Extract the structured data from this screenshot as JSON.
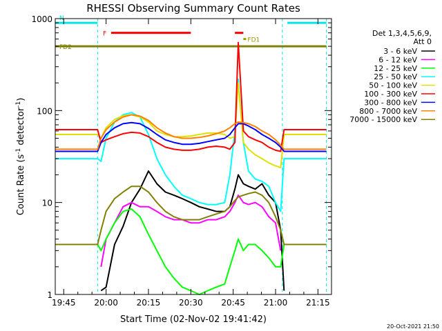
{
  "chart_data": {
    "type": "line",
    "title": "RHESSI Observing Summary Count Rates",
    "xlabel": "Start Time (02-Nov-02 19:41:42)",
    "ylabel_main": "Count Rate (s",
    "ylabel_sup1": "-1",
    "ylabel_mid": " detector",
    "ylabel_sup2": "-1",
    "ylabel_end": ")",
    "yscale": "log",
    "ylim": [
      1,
      1000
    ],
    "xlim_minutes": [
      19.7,
      21.33
    ],
    "xticks": [
      {
        "label": "19:45",
        "x": 19.75
      },
      {
        "label": "20:00",
        "x": 20.0
      },
      {
        "label": "20:15",
        "x": 20.25
      },
      {
        "label": "20:30",
        "x": 20.5
      },
      {
        "label": "20:45",
        "x": 20.75
      },
      {
        "label": "21:00",
        "x": 21.0
      },
      {
        "label": "21:15",
        "x": 21.25
      }
    ],
    "yticks": [
      {
        "label": "1",
        "y": 1
      },
      {
        "label": "10",
        "y": 10
      },
      {
        "label": "100",
        "y": 100
      },
      {
        "label": "1000",
        "y": 1000
      }
    ],
    "legend_header": [
      "Det 1,3,4,5,6,9,",
      "Att 0"
    ],
    "footer": "20-Oct-2021 21:50",
    "flags": [
      {
        "label": "N",
        "color": "#00e5e5",
        "y": 900,
        "segments": [
          [
            19.7,
            19.95
          ],
          [
            21.07,
            21.3
          ]
        ]
      },
      {
        "label": "F",
        "color": "#ff0000",
        "y": 700,
        "segments": [
          [
            20.03,
            20.5
          ],
          [
            20.76,
            20.81
          ]
        ]
      },
      {
        "label": "FD1",
        "color": "#999900",
        "y": 600,
        "segments": [
          [
            20.81,
            20.81
          ]
        ]
      },
      {
        "label": "FD2",
        "color": "#808000",
        "y": 500,
        "segments": [
          [
            19.7,
            21.3
          ]
        ]
      }
    ],
    "shading_dashes": [
      19.95,
      21.04,
      21.3
    ],
    "x_hours": [
      19.7,
      19.8,
      19.9,
      19.95,
      19.97,
      20.0,
      20.05,
      20.1,
      20.15,
      20.2,
      20.25,
      20.3,
      20.35,
      20.4,
      20.45,
      20.5,
      20.55,
      20.6,
      20.65,
      20.7,
      20.73,
      20.76,
      20.78,
      20.81,
      20.84,
      20.88,
      20.92,
      20.96,
      21.0,
      21.03,
      21.05,
      21.1,
      21.2,
      21.3
    ],
    "series": [
      {
        "name": "3 - 6 keV",
        "color": "#000000",
        "values": [
          null,
          null,
          null,
          null,
          1.1,
          1.2,
          3.5,
          5.5,
          10,
          14,
          22,
          16,
          13,
          12,
          11,
          10,
          9,
          8.5,
          8,
          8,
          9,
          14,
          20,
          16,
          15,
          14,
          16,
          12,
          10,
          5,
          1.1,
          null,
          null,
          null
        ]
      },
      {
        "name": "6 - 12 keV",
        "color": "#ff00ff",
        "values": [
          null,
          null,
          null,
          null,
          2,
          4,
          6,
          9,
          10,
          9,
          9,
          8,
          7,
          6.5,
          6.5,
          6,
          6,
          6.5,
          6.5,
          7,
          8,
          10,
          12,
          10,
          9.5,
          10,
          9,
          7,
          6,
          3,
          null,
          null,
          null,
          null
        ]
      },
      {
        "name": "12 - 25 keV",
        "color": "#00ff00",
        "values": [
          3.5,
          3.5,
          3.5,
          3.5,
          3,
          4,
          6,
          8,
          8.5,
          7,
          4.5,
          3,
          2,
          1.5,
          1.2,
          1.1,
          1.0,
          1.1,
          1.2,
          1.3,
          2,
          3,
          4,
          3,
          3.5,
          3.5,
          3,
          2.5,
          2,
          2,
          3.5,
          3.5,
          3.5,
          3.5
        ]
      },
      {
        "name": "25 - 50 keV",
        "color": "#00ffff",
        "values": [
          30,
          30,
          30,
          30,
          28,
          50,
          75,
          90,
          95,
          85,
          55,
          30,
          20,
          15,
          12,
          11,
          10,
          9.5,
          9.5,
          10,
          20,
          60,
          220,
          45,
          22,
          18,
          17,
          15,
          10,
          8,
          30,
          30,
          30,
          30
        ]
      },
      {
        "name": "50 - 100 keV",
        "color": "#e0e000",
        "values": [
          55,
          55,
          55,
          55,
          50,
          65,
          80,
          88,
          90,
          85,
          75,
          60,
          55,
          52,
          52,
          53,
          55,
          57,
          57,
          55,
          50,
          52,
          200,
          45,
          38,
          33,
          30,
          27,
          25,
          24,
          55,
          55,
          55,
          55
        ]
      },
      {
        "name": "100 - 300 keV",
        "color": "#ff0000",
        "values": [
          62,
          62,
          62,
          62,
          45,
          48,
          52,
          56,
          58,
          57,
          52,
          45,
          40,
          38,
          37,
          37,
          38,
          40,
          41,
          40,
          38,
          45,
          550,
          60,
          52,
          48,
          45,
          40,
          37,
          36,
          62,
          62,
          62,
          62
        ]
      },
      {
        "name": "300 - 800 keV",
        "color": "#0000ff",
        "values": [
          36,
          36,
          36,
          36,
          45,
          55,
          65,
          72,
          74,
          72,
          64,
          55,
          48,
          45,
          43,
          43,
          44,
          46,
          48,
          50,
          55,
          65,
          72,
          72,
          68,
          62,
          55,
          50,
          45,
          40,
          36,
          36,
          36,
          36
        ]
      },
      {
        "name": "800 - 7000 keV",
        "color": "#ff8000",
        "values": [
          38,
          38,
          38,
          38,
          50,
          62,
          75,
          85,
          90,
          87,
          78,
          65,
          57,
          52,
          50,
          50,
          51,
          53,
          56,
          60,
          65,
          72,
          75,
          74,
          72,
          67,
          60,
          55,
          48,
          42,
          38,
          38,
          38,
          38
        ]
      },
      {
        "name": "7000 - 15000 keV",
        "color": "#808000",
        "values": [
          3.5,
          3.5,
          3.5,
          3.5,
          5,
          8,
          11,
          13,
          15,
          15,
          13,
          10,
          8,
          7,
          6.5,
          6.5,
          6.5,
          7,
          7.5,
          8,
          9,
          10.5,
          11.5,
          12,
          12.5,
          13,
          12,
          10,
          7,
          5,
          3.5,
          3.5,
          3.5,
          3.5
        ]
      }
    ]
  }
}
